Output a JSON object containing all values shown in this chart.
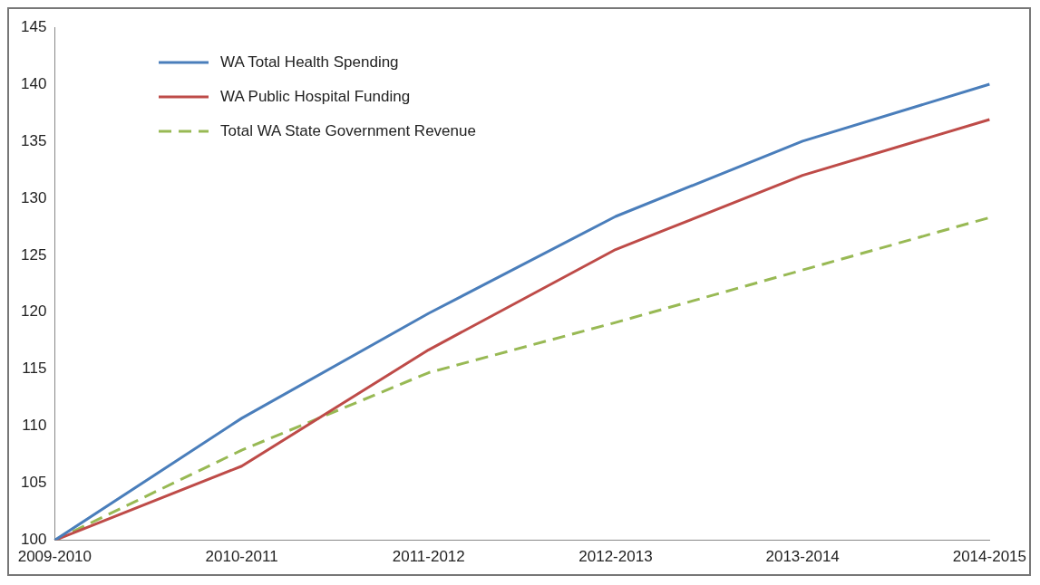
{
  "chart_data": {
    "type": "line",
    "categories": [
      "2009-2010",
      "2010-2011",
      "2011-2012",
      "2012-2013",
      "2013-2014",
      "2014-2015"
    ],
    "series": [
      {
        "name": "WA Total Health Spending",
        "color": "#4a7ebb",
        "values": [
          100,
          110.7,
          119.9,
          128.4,
          135,
          140
        ]
      },
      {
        "name": "WA Public Hospital Funding",
        "color": "#be4b48",
        "values": [
          100,
          106.5,
          116.7,
          125.5,
          132,
          136.9
        ]
      },
      {
        "name": "Total WA State Government  Revenue",
        "color": "#98b954",
        "values": [
          100,
          107.9,
          114.7,
          119.1,
          123.7,
          128.3
        ],
        "line_style": "dashed"
      }
    ],
    "ylim": [
      100,
      145
    ],
    "yticks": [
      100,
      105,
      110,
      115,
      120,
      125,
      130,
      135,
      140,
      145
    ],
    "grid": false,
    "legend": "top left",
    "marker": "none"
  }
}
